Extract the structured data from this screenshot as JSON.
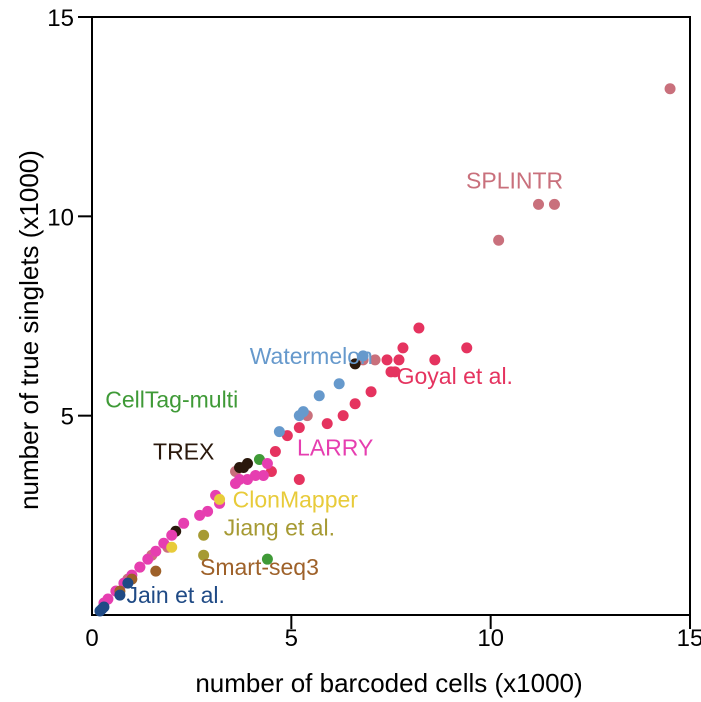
{
  "chart_data": {
    "type": "scatter",
    "title": "",
    "xlabel": "number of barcoded cells (x1000)",
    "ylabel": "number of true singlets (x1000)",
    "xlim": [
      0,
      15
    ],
    "ylim": [
      0,
      15
    ],
    "xticks": [
      0,
      5,
      10,
      15
    ],
    "yticks": [
      5,
      10,
      15
    ],
    "xtick_labels": [
      "0",
      "5",
      "10",
      "15"
    ],
    "ytick_labels": [
      "5",
      "10",
      "15"
    ],
    "grid": false,
    "legend": "none; series named by colored text labels placed near their points",
    "series": [
      {
        "name": "SPLINTR",
        "color": "#c9707c",
        "points": [
          [
            14.5,
            13.2
          ],
          [
            11.6,
            10.3
          ],
          [
            11.2,
            10.3
          ],
          [
            10.2,
            9.4
          ],
          [
            7.1,
            6.4
          ],
          [
            6.8,
            6.4
          ],
          [
            5.4,
            5.0
          ],
          [
            3.6,
            3.6
          ],
          [
            1.9,
            1.7
          ],
          [
            1.5,
            1.5
          ],
          [
            1.2,
            1.2
          ],
          [
            0.9,
            0.9
          ],
          [
            0.6,
            0.6
          ]
        ]
      },
      {
        "name": "Goyal et al.",
        "color": "#e5335f",
        "points": [
          [
            9.4,
            6.7
          ],
          [
            8.6,
            6.4
          ],
          [
            8.2,
            7.2
          ],
          [
            7.8,
            6.7
          ],
          [
            7.7,
            6.4
          ],
          [
            7.4,
            6.4
          ],
          [
            7.6,
            6.1
          ],
          [
            7.5,
            6.1
          ],
          [
            7.0,
            5.6
          ],
          [
            6.6,
            5.3
          ],
          [
            6.3,
            5.0
          ],
          [
            5.9,
            4.8
          ],
          [
            5.2,
            4.7
          ],
          [
            4.9,
            4.5
          ],
          [
            4.6,
            4.1
          ],
          [
            4.5,
            3.6
          ],
          [
            5.2,
            3.4
          ]
        ]
      },
      {
        "name": "Watermelon",
        "color": "#6699cc",
        "points": [
          [
            6.8,
            6.5
          ],
          [
            6.2,
            5.8
          ],
          [
            5.7,
            5.5
          ],
          [
            5.2,
            5.0
          ],
          [
            5.3,
            5.1
          ],
          [
            4.7,
            4.6
          ]
        ]
      },
      {
        "name": "CellTag-multi",
        "color": "#3f9a37",
        "points": [
          [
            4.4,
            1.4
          ],
          [
            4.2,
            3.9
          ]
        ]
      },
      {
        "name": "TREX",
        "color": "#2a180c",
        "points": [
          [
            6.6,
            6.3
          ],
          [
            3.9,
            3.8
          ],
          [
            3.8,
            3.7
          ],
          [
            3.7,
            3.7
          ],
          [
            2.1,
            2.1
          ]
        ]
      },
      {
        "name": "LARRY",
        "color": "#e63eb0",
        "points": [
          [
            4.4,
            3.8
          ],
          [
            4.3,
            3.5
          ],
          [
            4.1,
            3.5
          ],
          [
            3.9,
            3.4
          ],
          [
            3.7,
            3.4
          ],
          [
            3.6,
            3.3
          ],
          [
            3.1,
            3.0
          ],
          [
            3.2,
            2.8
          ],
          [
            2.9,
            2.6
          ],
          [
            2.7,
            2.5
          ],
          [
            2.3,
            2.3
          ],
          [
            2.0,
            2.0
          ],
          [
            1.8,
            1.8
          ],
          [
            1.6,
            1.6
          ],
          [
            1.4,
            1.4
          ],
          [
            1.2,
            1.2
          ],
          [
            1.0,
            1.0
          ],
          [
            0.8,
            0.8
          ],
          [
            0.6,
            0.6
          ],
          [
            0.4,
            0.4
          ],
          [
            0.3,
            0.3
          ]
        ]
      },
      {
        "name": "ClonMapper",
        "color": "#e8cb3a",
        "points": [
          [
            3.2,
            2.9
          ],
          [
            2.0,
            1.7
          ]
        ]
      },
      {
        "name": "Jiang et al.",
        "color": "#a69a33",
        "points": [
          [
            2.8,
            2.0
          ],
          [
            2.8,
            1.5
          ]
        ]
      },
      {
        "name": "Smart-seq3",
        "color": "#9e6129",
        "points": [
          [
            1.6,
            1.1
          ],
          [
            1.0,
            0.9
          ],
          [
            0.7,
            0.6
          ]
        ]
      },
      {
        "name": "Jain et al.",
        "color": "#1f4a85",
        "points": [
          [
            0.9,
            0.8
          ],
          [
            0.7,
            0.5
          ],
          [
            0.3,
            0.2
          ],
          [
            0.2,
            0.1
          ],
          [
            0.25,
            0.15
          ]
        ]
      }
    ],
    "annotations": [
      {
        "text": "SPLINTR",
        "x": 10.6,
        "y": 10.7,
        "color": "#c9707c"
      },
      {
        "text": "Goyal et al.",
        "x": 9.1,
        "y": 5.8,
        "color": "#e5335f"
      },
      {
        "text": "Watermelon",
        "x": 5.5,
        "y": 6.3,
        "color": "#6699cc"
      },
      {
        "text": "CellTag-multi",
        "x": 2.0,
        "y": 5.2,
        "color": "#3f9a37"
      },
      {
        "text": "TREX",
        "x": 2.3,
        "y": 3.9,
        "color": "#2a180c"
      },
      {
        "text": "LARRY",
        "x": 6.1,
        "y": 4.0,
        "color": "#e63eb0"
      },
      {
        "text": "ClonMapper",
        "x": 5.1,
        "y": 2.7,
        "color": "#e8cb3a"
      },
      {
        "text": "Jiang et al.",
        "x": 4.7,
        "y": 2.0,
        "color": "#a69a33"
      },
      {
        "text": "Smart-seq3",
        "x": 4.2,
        "y": 1.0,
        "color": "#9e6129"
      },
      {
        "text": "Jain et al.",
        "x": 2.1,
        "y": 0.3,
        "color": "#1f4a85"
      }
    ]
  }
}
